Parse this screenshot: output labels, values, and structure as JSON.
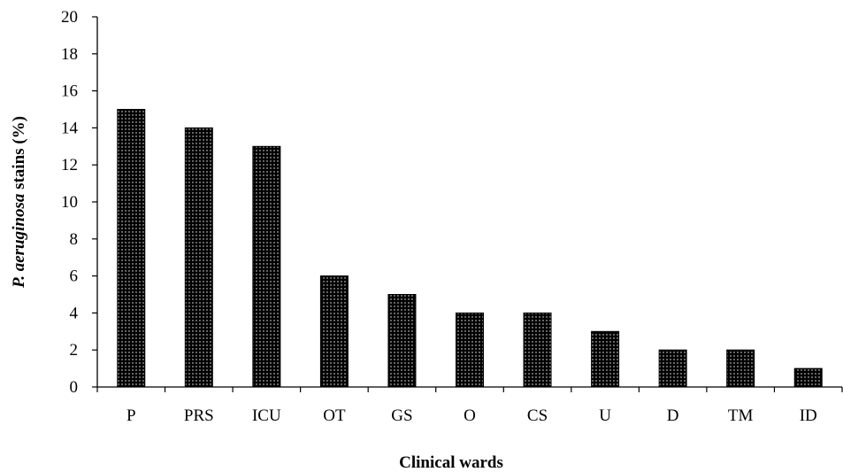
{
  "chart_data": {
    "type": "bar",
    "categories": [
      "P",
      "PRS",
      "ICU",
      "OT",
      "GS",
      "O",
      "CS",
      "U",
      "D",
      "TM",
      "ID"
    ],
    "values": [
      15,
      14,
      13,
      6,
      5,
      4,
      4,
      3,
      2,
      2,
      1
    ],
    "title": "",
    "xlabel": "Clinical wards",
    "ylabel_italic": "P. aeruginosa",
    "ylabel_rest": " stains  (%)",
    "ylim": [
      0,
      20
    ],
    "yticks": [
      "0",
      "2",
      "4",
      "6",
      "8",
      "10",
      "12",
      "14",
      "16",
      "18",
      "20"
    ],
    "grid": false,
    "legend": "none",
    "bar_color": "#000000",
    "bar_pattern_dot_color": "#ffffff"
  }
}
